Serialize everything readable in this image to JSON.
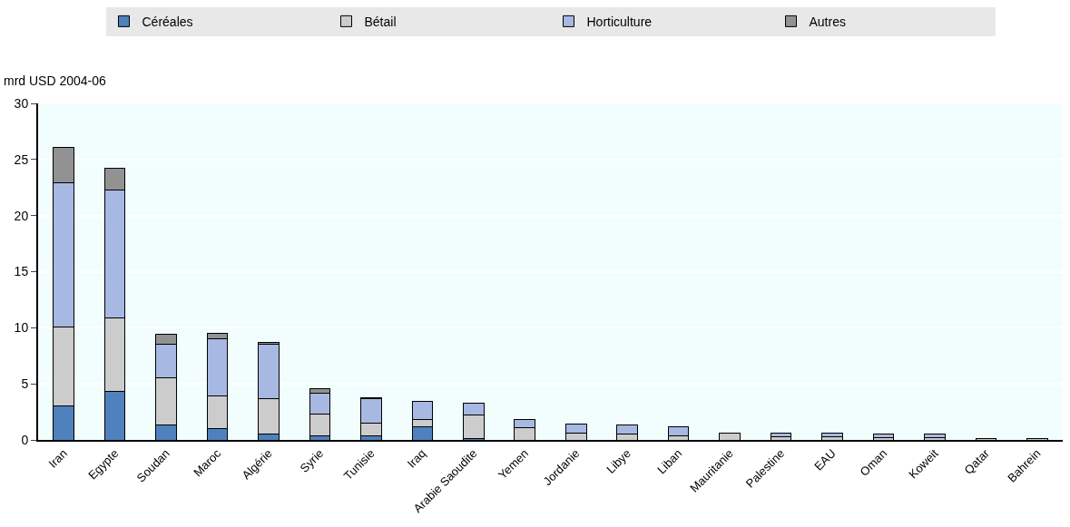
{
  "chart_data": {
    "type": "bar",
    "stacked": true,
    "ylabel": "mrd USD 2004-06",
    "categories": [
      "Iran",
      "Egypte",
      "Soudan",
      "Maroc",
      "Algérie",
      "Syrie",
      "Tunisie",
      "Iraq",
      "Arabie Saoudite",
      "Yemen",
      "Jordanie",
      "Libye",
      "Liban",
      "Mauritanie",
      "Palestine",
      "EAU",
      "Oman",
      "Koweit",
      "Qatar",
      "Bahrein"
    ],
    "series": [
      {
        "name": "Céréales",
        "color": "#4f81bd",
        "values": [
          3.0,
          4.3,
          1.3,
          1.0,
          0.5,
          0.4,
          0.4,
          1.2,
          0.1,
          null,
          null,
          null,
          null,
          null,
          null,
          null,
          null,
          null,
          null,
          null
        ]
      },
      {
        "name": "Bétail",
        "color": "#cccccc",
        "values": [
          7.1,
          6.6,
          4.2,
          2.9,
          3.2,
          1.9,
          1.1,
          0.6,
          2.1,
          1.1,
          0.6,
          0.5,
          0.4,
          0.6,
          0.3,
          0.3,
          0.2,
          0.2,
          0.1,
          0.1
        ]
      },
      {
        "name": "Horticulture",
        "color": "#a7b9e3",
        "values": [
          12.8,
          11.4,
          3.0,
          5.1,
          4.8,
          1.9,
          2.2,
          1.6,
          1.1,
          0.7,
          0.8,
          0.8,
          0.8,
          null,
          0.3,
          0.3,
          0.3,
          0.3,
          null,
          null
        ]
      },
      {
        "name": "Autres",
        "color": "#929292",
        "values": [
          3.2,
          1.9,
          0.9,
          0.5,
          0.2,
          0.4,
          0.1,
          null,
          null,
          null,
          null,
          null,
          null,
          null,
          null,
          null,
          null,
          null,
          null,
          null
        ]
      }
    ],
    "ylim": [
      0,
      30
    ],
    "yticks": [
      0,
      5,
      10,
      15,
      20,
      25,
      30
    ],
    "grid": "y",
    "legend": "top"
  }
}
